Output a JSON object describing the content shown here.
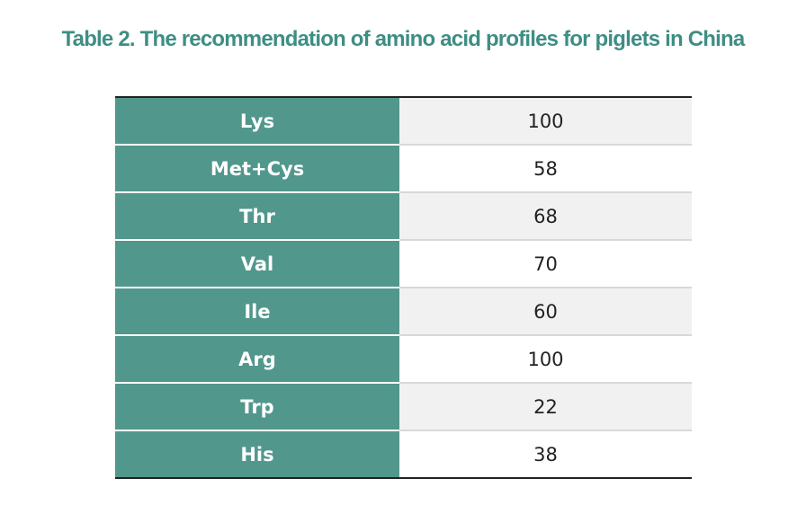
{
  "title": "Table 2. The recommendation of amino acid profiles for piglets in China",
  "table": {
    "rows": [
      [
        "Lys",
        "100"
      ],
      [
        "Met+Cys",
        "58"
      ],
      [
        "Thr",
        "68"
      ],
      [
        "Val",
        "70"
      ],
      [
        "Ile",
        "60"
      ],
      [
        "Arg",
        "100"
      ],
      [
        "Trp",
        "22"
      ],
      [
        "His",
        "38"
      ]
    ]
  }
}
